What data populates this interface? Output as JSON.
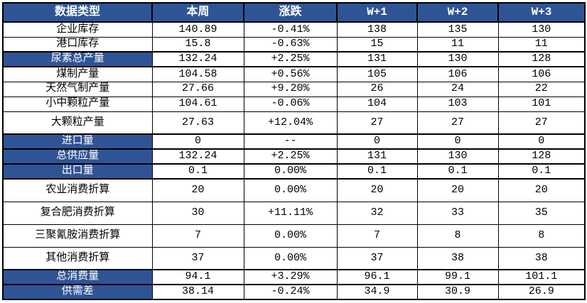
{
  "page": {
    "accent_blue": "#2F5496",
    "border_color": "#000000",
    "background": "#ffffff",
    "text_color": "#000000"
  },
  "table": {
    "columns": [
      {
        "label": "数据类型"
      },
      {
        "label": "本周"
      },
      {
        "label": "涨跌"
      },
      {
        "label": "W+1"
      },
      {
        "label": "W+2"
      },
      {
        "label": "W+3"
      }
    ],
    "rows": [
      {
        "label": "企业库存",
        "values": [
          "140.89",
          "-0.41%",
          "138",
          "135",
          "130"
        ],
        "highlight": false,
        "tall": false
      },
      {
        "label": "港口库存",
        "values": [
          "15.8",
          "-0.63%",
          "15",
          "11",
          "11"
        ],
        "highlight": false,
        "tall": false
      },
      {
        "label": "尿素总产量",
        "values": [
          "132.24",
          "+2.25%",
          "131",
          "130",
          "128"
        ],
        "highlight": true,
        "tall": false
      },
      {
        "label": "煤制产量",
        "values": [
          "104.58",
          "+0.56%",
          "105",
          "106",
          "106"
        ],
        "highlight": false,
        "tall": false
      },
      {
        "label": "天然气制产量",
        "values": [
          "27.66",
          "+9.20%",
          "26",
          "24",
          "22"
        ],
        "highlight": false,
        "tall": false
      },
      {
        "label": "小中颗粒产量",
        "values": [
          "104.61",
          "-0.06%",
          "104",
          "103",
          "101"
        ],
        "highlight": false,
        "tall": false
      },
      {
        "label": "大颗粒产量",
        "values": [
          "27.63",
          "+12.04%",
          "27",
          "27",
          "27"
        ],
        "highlight": false,
        "tall": true
      },
      {
        "label": "进口量",
        "values": [
          "0",
          "--",
          "0",
          "0",
          "0"
        ],
        "highlight": true,
        "tall": false
      },
      {
        "label": "总供应量",
        "values": [
          "132.24",
          "+2.25%",
          "131",
          "130",
          "128"
        ],
        "highlight": true,
        "tall": false
      },
      {
        "label": "出口量",
        "values": [
          "0.1",
          "0.00%",
          "0.1",
          "0.1",
          "0.1"
        ],
        "highlight": true,
        "tall": false
      },
      {
        "label": "农业消费折算",
        "values": [
          "20",
          "0.00%",
          "20",
          "20",
          "20"
        ],
        "highlight": false,
        "tall": true
      },
      {
        "label": "复合肥消费折算",
        "values": [
          "30",
          "+11.11%",
          "32",
          "33",
          "35"
        ],
        "highlight": false,
        "tall": true
      },
      {
        "label": "三聚氰胺消费折算",
        "values": [
          "7",
          "0.00%",
          "7",
          "8",
          "8"
        ],
        "highlight": false,
        "tall": true
      },
      {
        "label": "其他消费折算",
        "values": [
          "37",
          "0.00%",
          "37",
          "38",
          "38"
        ],
        "highlight": false,
        "tall": true
      },
      {
        "label": "总消费量",
        "values": [
          "94.1",
          "+3.29%",
          "96.1",
          "99.1",
          "101.1"
        ],
        "highlight": true,
        "tall": false
      },
      {
        "label": "供需差",
        "values": [
          "38.14",
          "-0.24%",
          "34.9",
          "30.9",
          "26.9"
        ],
        "highlight": true,
        "tall": false
      }
    ]
  }
}
